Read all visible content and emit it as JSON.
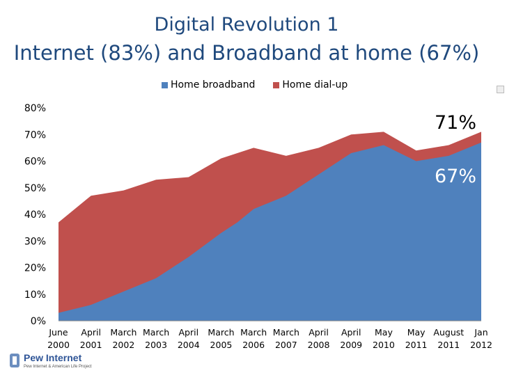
{
  "chart_data": {
    "type": "area",
    "title": "Digital Revolution 1",
    "subtitle": "Internet (83%) and Broadband at home (67%)",
    "xlabel": "",
    "ylabel": "",
    "categories": [
      [
        "June",
        "2000"
      ],
      [
        "April",
        "2001"
      ],
      [
        "March",
        "2002"
      ],
      [
        "March",
        "2003"
      ],
      [
        "April",
        "2004"
      ],
      [
        "March",
        "2005"
      ],
      [
        "March",
        "2006"
      ],
      [
        "March",
        "2007"
      ],
      [
        "April",
        "2008"
      ],
      [
        "April",
        "2009"
      ],
      [
        "May",
        "2010"
      ],
      [
        "May",
        "2011"
      ],
      [
        "August",
        "2011"
      ],
      [
        "Jan",
        "2012"
      ]
    ],
    "x_positions": [
      0,
      1,
      2,
      3,
      4,
      5,
      6,
      7,
      8,
      9,
      10,
      11,
      12,
      13
    ],
    "x_positions_extra": [
      {
        "x": 0.0,
        "broadband": 3,
        "dialup": 34
      },
      {
        "x": 1.0,
        "broadband": 6,
        "dialup": 41
      },
      {
        "x": 2.0,
        "broadband": 11,
        "dialup": 38
      },
      {
        "x": 3.0,
        "broadband": 16,
        "dialup": 37
      },
      {
        "x": 4.0,
        "broadband": 24,
        "dialup": 30
      },
      {
        "x": 5.0,
        "broadband": 33,
        "dialup": 28
      },
      {
        "x": 5.5,
        "broadband": 37,
        "dialup": 26
      },
      {
        "x": 6.0,
        "broadband": 42,
        "dialup": 23
      },
      {
        "x": 7.0,
        "broadband": 47,
        "dialup": 15
      },
      {
        "x": 8.0,
        "broadband": 55,
        "dialup": 10
      },
      {
        "x": 9.0,
        "broadband": 63,
        "dialup": 7
      },
      {
        "x": 10.0,
        "broadband": 66,
        "dialup": 5
      },
      {
        "x": 11.0,
        "broadband": 60,
        "dialup": 4
      },
      {
        "x": 12.0,
        "broadband": 62,
        "dialup": 4
      },
      {
        "x": 13.0,
        "broadband": 67,
        "dialup": 4
      }
    ],
    "series": [
      {
        "name": "Home broadband",
        "color": "#4f81bd"
      },
      {
        "name": "Home dial-up",
        "color": "#c0504d"
      }
    ],
    "ylim": [
      0,
      80
    ],
    "yticks": [
      "0%",
      "10%",
      "20%",
      "30%",
      "40%",
      "50%",
      "60%",
      "70%",
      "80%"
    ],
    "grid": false,
    "legend": "top",
    "annotations": [
      {
        "text": "71%",
        "color": "#000000",
        "x": 13,
        "y": 71
      },
      {
        "text": "67%",
        "color": "#ffffff",
        "x": 13,
        "y": 67
      }
    ]
  },
  "logo": {
    "name": "Pew Internet",
    "tagline": "Pew Internet & American Life Project"
  }
}
